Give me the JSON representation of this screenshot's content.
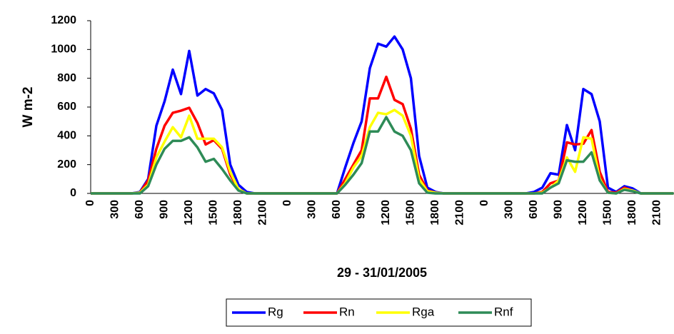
{
  "chart_data": {
    "type": "line",
    "xlabel": "29 - 31/01/2005",
    "ylabel": "W m-2",
    "categories": [
      "0",
      null,
      null,
      "300",
      null,
      null,
      "600",
      null,
      null,
      "900",
      null,
      null,
      "1200",
      null,
      null,
      "1500",
      null,
      null,
      "1800",
      null,
      null,
      "2100",
      null,
      null,
      "0",
      null,
      null,
      "300",
      null,
      null,
      "600",
      null,
      null,
      "900",
      null,
      null,
      "1200",
      null,
      null,
      "1500",
      null,
      null,
      "1800",
      null,
      null,
      "2100",
      null,
      null,
      "0",
      null,
      null,
      "300",
      null,
      null,
      "600",
      null,
      null,
      "900",
      null,
      null,
      "1200",
      null,
      null,
      "1500",
      null,
      null,
      "1800",
      null,
      null,
      "2100",
      null,
      null
    ],
    "series": [
      {
        "name": "Rg",
        "color": "#0000ff",
        "values": [
          0,
          0,
          0,
          0,
          0,
          0,
          10,
          100,
          470,
          640,
          860,
          690,
          990,
          680,
          725,
          695,
          580,
          200,
          60,
          10,
          0,
          0,
          0,
          0,
          0,
          0,
          0,
          0,
          0,
          0,
          0,
          180,
          350,
          500,
          870,
          1040,
          1020,
          1090,
          1000,
          800,
          260,
          40,
          10,
          0,
          0,
          0,
          0,
          0,
          0,
          0,
          0,
          0,
          0,
          0,
          10,
          40,
          140,
          130,
          475,
          300,
          725,
          690,
          500,
          40,
          10,
          50,
          35,
          0,
          0,
          0,
          0,
          0
        ]
      },
      {
        "name": "Rn",
        "color": "#ff0000",
        "values": [
          0,
          0,
          0,
          0,
          0,
          0,
          5,
          90,
          310,
          470,
          560,
          575,
          595,
          490,
          340,
          370,
          310,
          130,
          30,
          0,
          0,
          0,
          0,
          0,
          0,
          0,
          0,
          0,
          0,
          0,
          0,
          100,
          200,
          300,
          660,
          660,
          810,
          650,
          620,
          450,
          130,
          20,
          5,
          0,
          0,
          0,
          0,
          0,
          0,
          0,
          0,
          0,
          0,
          0,
          0,
          10,
          70,
          90,
          355,
          340,
          345,
          440,
          150,
          10,
          5,
          40,
          20,
          0,
          0,
          0,
          0,
          0
        ]
      },
      {
        "name": "Rga",
        "color": "#ffff00",
        "values": [
          0,
          0,
          0,
          0,
          0,
          0,
          5,
          60,
          250,
          360,
          460,
          390,
          540,
          380,
          380,
          380,
          320,
          150,
          30,
          0,
          0,
          0,
          0,
          0,
          0,
          0,
          0,
          0,
          0,
          0,
          0,
          70,
          180,
          260,
          460,
          560,
          550,
          580,
          540,
          400,
          100,
          15,
          5,
          0,
          0,
          0,
          0,
          0,
          0,
          0,
          0,
          0,
          0,
          0,
          0,
          5,
          40,
          90,
          250,
          150,
          390,
          380,
          100,
          5,
          0,
          30,
          20,
          0,
          0,
          0,
          0,
          0
        ]
      },
      {
        "name": "Rnf",
        "color": "#2e8b57",
        "values": [
          0,
          0,
          0,
          0,
          0,
          0,
          0,
          50,
          200,
          310,
          365,
          365,
          390,
          320,
          220,
          240,
          170,
          90,
          20,
          0,
          0,
          0,
          0,
          0,
          0,
          0,
          0,
          0,
          0,
          0,
          0,
          60,
          130,
          210,
          430,
          430,
          530,
          430,
          400,
          300,
          70,
          5,
          0,
          0,
          0,
          0,
          0,
          0,
          0,
          0,
          0,
          0,
          0,
          0,
          0,
          0,
          40,
          70,
          230,
          220,
          220,
          285,
          90,
          5,
          0,
          25,
          15,
          0,
          0,
          0,
          0,
          0
        ]
      }
    ],
    "ylim": [
      0,
      1200
    ],
    "yticks": [
      0,
      200,
      400,
      600,
      800,
      1000,
      1200
    ],
    "grid": false,
    "legend": "bottom"
  }
}
